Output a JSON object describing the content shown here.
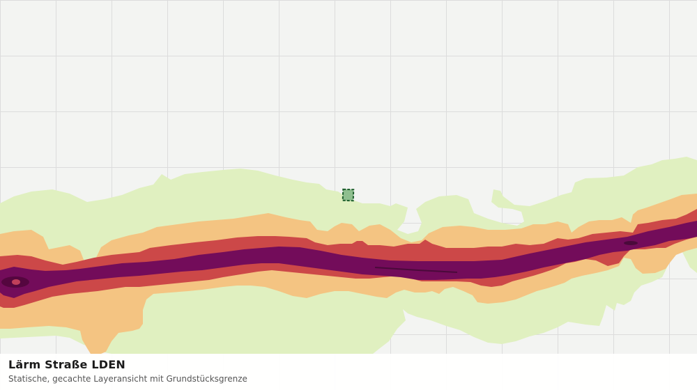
{
  "map": {
    "layer_name": "Lärm Straße LDEN",
    "grid_visible": true,
    "colors": {
      "background": "#f3f4f2",
      "grid": "#dcdcdc",
      "band_outer": "#e0f0c0",
      "band_mid": "#f4c482",
      "band_inner": "#cc4848",
      "band_core": "#730c5a",
      "parcel_fill": "#8fbf8f",
      "parcel_stroke": "#1d5e2c"
    }
  },
  "caption": {
    "title": "Lärm Straße LDEN",
    "subtitle": "Statische, gecachte Layeransicht mit Grundstücksgrenze"
  }
}
